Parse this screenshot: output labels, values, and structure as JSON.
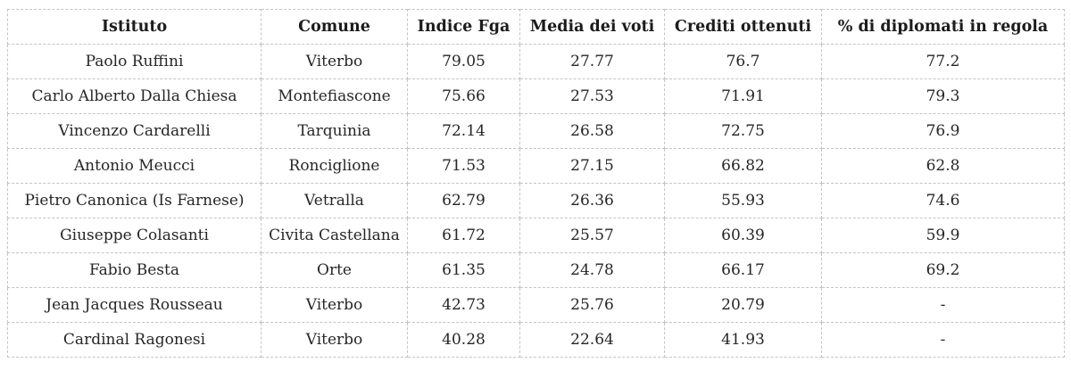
{
  "table": {
    "headers": [
      "Istituto",
      "Comune",
      "Indice Fga",
      "Media dei voti",
      "Crediti ottenuti",
      "% di diplomati in regola"
    ],
    "rows": [
      [
        "Paolo Ruffini",
        "Viterbo",
        "79.05",
        "27.77",
        "76.7",
        "77.2"
      ],
      [
        "Carlo Alberto Dalla Chiesa",
        "Montefiascone",
        "75.66",
        "27.53",
        "71.91",
        "79.3"
      ],
      [
        "Vincenzo Cardarelli",
        "Tarquinia",
        "72.14",
        "26.58",
        "72.75",
        "76.9"
      ],
      [
        "Antonio Meucci",
        "Ronciglione",
        "71.53",
        "27.15",
        "66.82",
        "62.8"
      ],
      [
        "Pietro Canonica (Is Farnese)",
        "Vetralla",
        "62.79",
        "26.36",
        "55.93",
        "74.6"
      ],
      [
        "Giuseppe Colasanti",
        "Civita Castellana",
        "61.72",
        "25.57",
        "60.39",
        "59.9"
      ],
      [
        "Fabio Besta",
        "Orte",
        "61.35",
        "24.78",
        "66.17",
        "69.2"
      ],
      [
        "Jean Jacques Rousseau",
        "Viterbo",
        "42.73",
        "25.76",
        "20.79",
        "-"
      ],
      [
        "Cardinal Ragonesi",
        "Viterbo",
        "40.28",
        "22.64",
        "41.93",
        "-"
      ]
    ]
  }
}
